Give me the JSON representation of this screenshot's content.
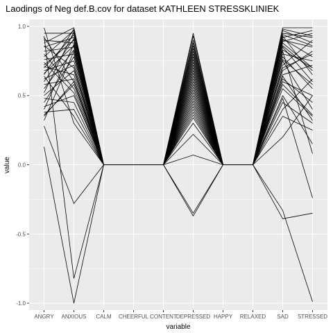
{
  "chart_data": {
    "type": "line",
    "title": "Laodings of Neg def.B.cov for dataset KATHLEEN STRESSKLINIEK",
    "xlabel": "variable",
    "ylabel": "value",
    "categories": [
      "ANGRY",
      "ANXIOUS",
      "CALM",
      "CHEERFUL",
      "CONTENT",
      "DEPRESSED",
      "HAPPY",
      "RELAXED",
      "SAD",
      "STRESSED"
    ],
    "ylim": [
      -1.05,
      1.05
    ],
    "yticks": [
      -1.0,
      -0.5,
      0.0,
      0.5,
      1.0
    ],
    "ytick_labels": [
      "-1.0",
      "-0.5",
      "0.0",
      "0.5",
      "1.0"
    ],
    "grid": true,
    "line_color": "#000000",
    "panel_background": "#ebebeb",
    "grid_color": "#ffffff",
    "series": [
      {
        "values": [
          0.99,
          0.3,
          0.0,
          0.0,
          0.0,
          0.95,
          0.0,
          0.0,
          0.75,
          0.4
        ]
      },
      {
        "values": [
          0.95,
          0.95,
          0.0,
          0.0,
          0.0,
          0.93,
          0.0,
          0.0,
          0.9,
          0.85
        ]
      },
      {
        "values": [
          0.92,
          0.6,
          0.0,
          0.0,
          0.0,
          0.9,
          0.0,
          0.0,
          0.88,
          0.7
        ]
      },
      {
        "values": [
          0.9,
          0.88,
          0.0,
          0.0,
          0.0,
          0.88,
          0.0,
          0.0,
          0.95,
          0.92
        ]
      },
      {
        "values": [
          0.88,
          0.99,
          0.0,
          0.0,
          0.0,
          0.86,
          0.0,
          0.0,
          0.99,
          0.99
        ]
      },
      {
        "values": [
          0.86,
          0.7,
          0.0,
          0.0,
          0.0,
          0.84,
          0.0,
          0.0,
          0.6,
          0.5
        ]
      },
      {
        "values": [
          0.85,
          0.92,
          0.0,
          0.0,
          0.0,
          0.82,
          0.0,
          0.0,
          0.85,
          0.6
        ]
      },
      {
        "values": [
          0.82,
          0.85,
          0.0,
          0.0,
          0.0,
          0.8,
          0.0,
          0.0,
          0.92,
          0.97
        ]
      },
      {
        "values": [
          0.8,
          0.55,
          0.0,
          0.0,
          0.0,
          0.78,
          0.0,
          0.0,
          0.7,
          0.8
        ]
      },
      {
        "values": [
          0.78,
          0.97,
          0.0,
          0.0,
          0.0,
          0.76,
          0.0,
          0.0,
          0.97,
          0.88
        ]
      },
      {
        "values": [
          0.76,
          0.8,
          0.0,
          0.0,
          0.0,
          0.74,
          0.0,
          0.0,
          0.8,
          0.75
        ]
      },
      {
        "values": [
          0.72,
          0.9,
          0.0,
          0.0,
          0.0,
          0.72,
          0.0,
          0.0,
          0.89,
          0.95
        ]
      },
      {
        "values": [
          0.71,
          0.65,
          0.0,
          0.0,
          0.0,
          0.7,
          0.0,
          0.0,
          0.65,
          0.72
        ]
      },
      {
        "values": [
          0.7,
          0.94,
          0.0,
          0.0,
          0.0,
          0.68,
          0.0,
          0.0,
          0.93,
          0.65
        ]
      },
      {
        "values": [
          0.68,
          0.75,
          0.0,
          0.0,
          0.0,
          0.66,
          0.0,
          0.0,
          0.72,
          0.9
        ]
      },
      {
        "values": [
          0.66,
          0.86,
          0.0,
          0.0,
          0.0,
          0.64,
          0.0,
          0.0,
          0.86,
          0.68
        ]
      },
      {
        "values": [
          0.65,
          0.98,
          0.0,
          0.0,
          0.0,
          0.62,
          0.0,
          0.0,
          0.98,
          0.93
        ]
      },
      {
        "values": [
          0.62,
          0.72,
          0.0,
          0.0,
          0.0,
          0.6,
          0.0,
          0.0,
          0.78,
          0.55
        ]
      },
      {
        "values": [
          0.6,
          0.91,
          0.0,
          0.0,
          0.0,
          0.58,
          0.0,
          0.0,
          0.91,
          0.78
        ]
      },
      {
        "values": [
          0.58,
          0.62,
          0.0,
          0.0,
          0.0,
          0.56,
          0.0,
          0.0,
          0.68,
          0.82
        ]
      },
      {
        "values": [
          0.55,
          0.83,
          0.0,
          0.0,
          0.0,
          0.54,
          0.0,
          0.0,
          0.83,
          0.7
        ]
      },
      {
        "values": [
          0.52,
          0.96,
          0.0,
          0.0,
          0.0,
          0.52,
          0.0,
          0.0,
          0.94,
          0.86
        ]
      },
      {
        "values": [
          0.5,
          0.68,
          0.0,
          0.0,
          0.0,
          0.5,
          0.0,
          0.0,
          0.62,
          0.45
        ]
      },
      {
        "values": [
          0.48,
          0.45,
          0.0,
          0.0,
          0.0,
          0.48,
          0.0,
          0.0,
          0.55,
          0.35
        ]
      },
      {
        "values": [
          0.45,
          0.78,
          0.0,
          0.0,
          0.0,
          0.46,
          0.0,
          0.0,
          0.45,
          0.3
        ]
      },
      {
        "values": [
          0.42,
          0.5,
          0.0,
          0.0,
          0.0,
          0.44,
          0.0,
          0.0,
          0.5,
          0.15
        ]
      },
      {
        "values": [
          0.4,
          0.87,
          0.0,
          0.0,
          0.0,
          0.42,
          0.0,
          0.0,
          0.82,
          0.08
        ]
      },
      {
        "values": [
          0.38,
          0.4,
          0.0,
          0.0,
          0.0,
          0.4,
          0.0,
          0.0,
          0.4,
          0.62
        ]
      },
      {
        "values": [
          0.36,
          0.58,
          0.0,
          0.0,
          0.0,
          0.38,
          0.0,
          0.0,
          0.35,
          0.25
        ]
      },
      {
        "values": [
          0.32,
          0.82,
          0.0,
          0.0,
          0.0,
          0.36,
          0.0,
          0.0,
          0.2,
          0.5
        ]
      },
      {
        "values": [
          0.28,
          -0.28,
          0.0,
          0.0,
          0.0,
          0.34,
          0.0,
          0.0,
          0.58,
          0.36
        ]
      },
      {
        "values": [
          0.74,
          0.52,
          0.0,
          0.0,
          0.0,
          0.3,
          0.0,
          0.0,
          0.76,
          0.58
        ]
      },
      {
        "values": [
          0.64,
          0.35,
          0.0,
          0.0,
          0.0,
          0.22,
          0.0,
          0.0,
          0.64,
          0.32
        ]
      },
      {
        "values": [
          0.13,
          -1.0,
          0.0,
          0.0,
          0.0,
          0.07,
          0.0,
          0.0,
          -0.33,
          -0.99
        ]
      },
      {
        "values": [
          0.93,
          -0.82,
          0.0,
          0.0,
          0.0,
          -0.37,
          0.0,
          0.0,
          -0.39,
          -0.35
        ]
      },
      {
        "values": [
          0.35,
          0.6,
          0.0,
          0.0,
          0.0,
          -0.35,
          0.0,
          0.0,
          0.48,
          -0.24
        ]
      }
    ]
  }
}
